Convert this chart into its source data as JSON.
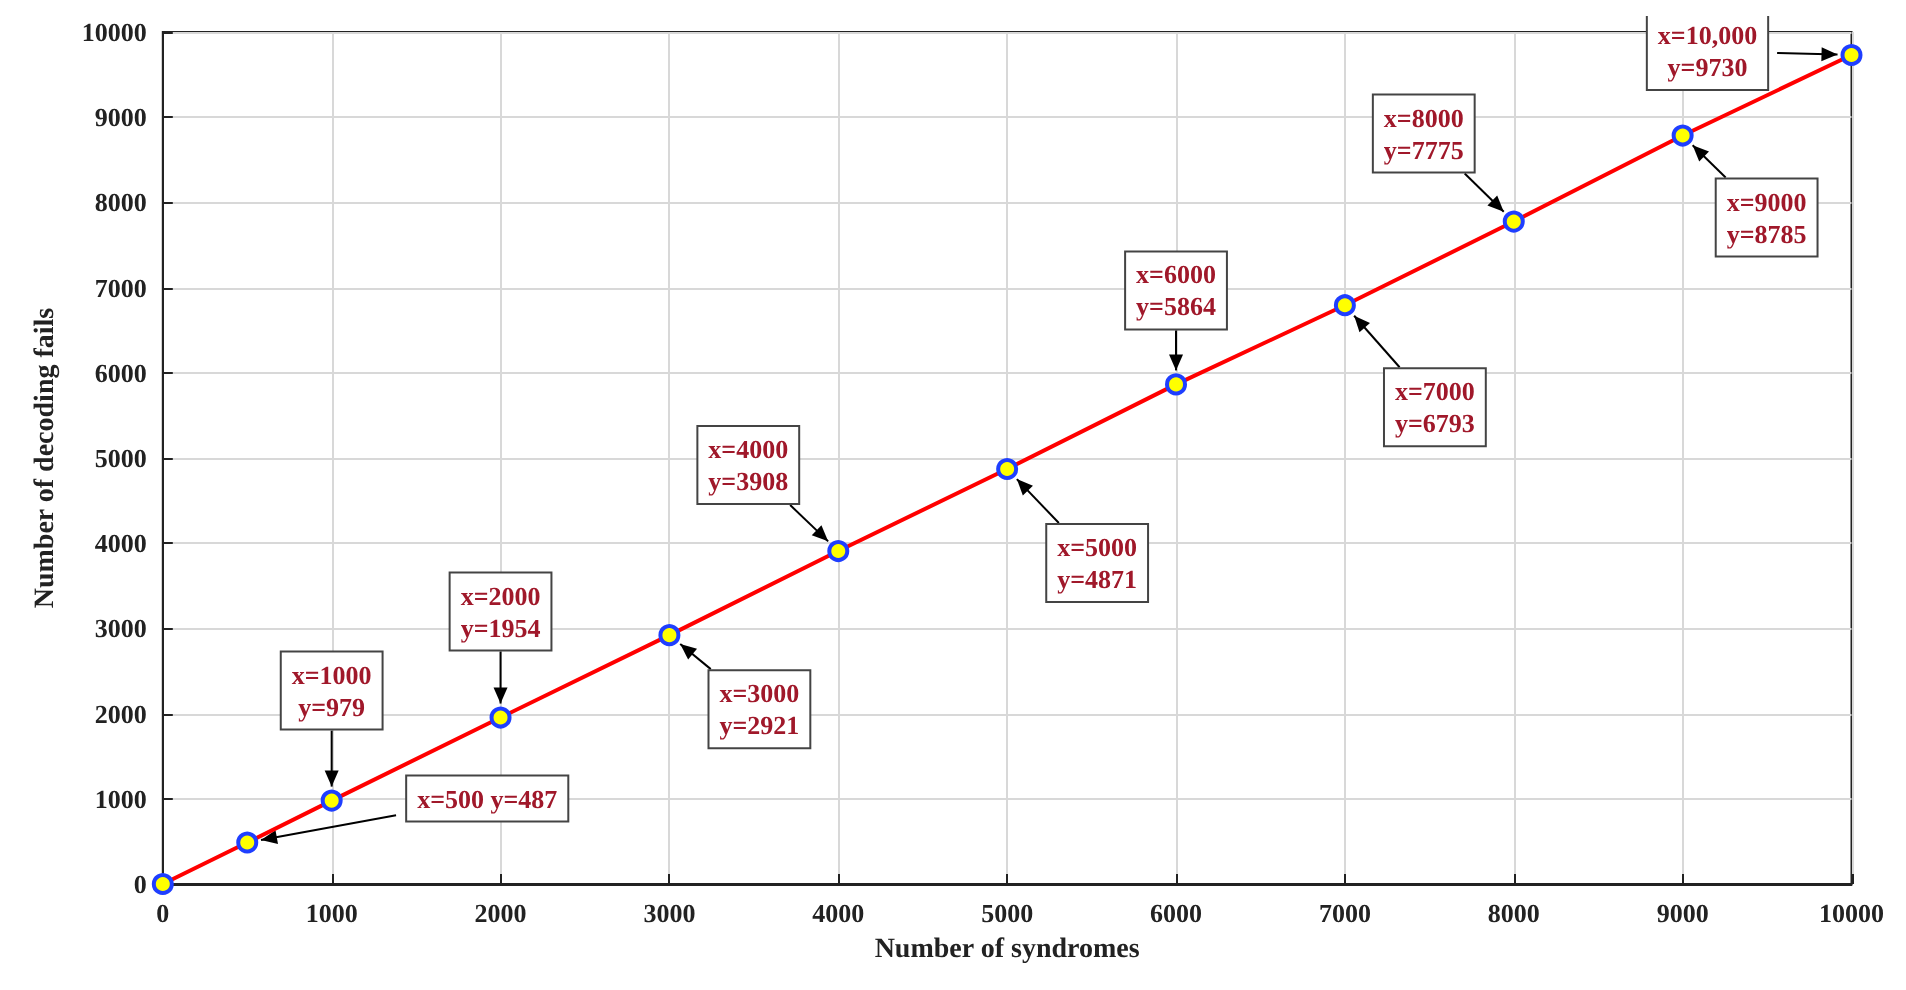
{
  "chart_data": {
    "type": "line",
    "xlabel": "Number of syndromes",
    "ylabel": "Number of decoding fails",
    "x": [
      0,
      500,
      1000,
      2000,
      3000,
      4000,
      5000,
      6000,
      7000,
      8000,
      9000,
      10000
    ],
    "series": [
      {
        "color": "#ff0000",
        "values": [
          0,
          487,
          979,
          1954,
          2921,
          3908,
          4871,
          5864,
          6793,
          7775,
          8785,
          9730
        ]
      }
    ],
    "xlim": [
      0,
      10000
    ],
    "xticks": [
      0,
      1000,
      2000,
      3000,
      4000,
      5000,
      6000,
      7000,
      8000,
      9000,
      10000
    ],
    "ylim": [
      0,
      10000
    ],
    "yticks": [
      0,
      1000,
      2000,
      3000,
      4000,
      5000,
      6000,
      7000,
      8000,
      9000,
      10000
    ],
    "grid": true,
    "marker": "circle",
    "line_style": "solid",
    "annotations": [
      {
        "text": "x=500 y=487",
        "x": 500,
        "y": 487
      },
      {
        "text": "x=1000\ny=979",
        "x": 1000,
        "y": 979
      },
      {
        "text": "x=2000\ny=1954",
        "x": 2000,
        "y": 1954
      },
      {
        "text": "x=3000\ny=2921",
        "x": 3000,
        "y": 2921
      },
      {
        "text": "x=4000\ny=3908",
        "x": 4000,
        "y": 3908
      },
      {
        "text": "x=5000\ny=4871",
        "x": 5000,
        "y": 4871
      },
      {
        "text": "x=6000\ny=5864",
        "x": 6000,
        "y": 5864
      },
      {
        "text": "x=7000\ny=6793",
        "x": 7000,
        "y": 6793
      },
      {
        "text": "x=8000\ny=7775",
        "x": 8000,
        "y": 7775
      },
      {
        "text": "x=9000\ny=8785",
        "x": 9000,
        "y": 8785
      },
      {
        "text": "x=10,000\ny=9730",
        "x": 10000,
        "y": 9730
      }
    ]
  }
}
